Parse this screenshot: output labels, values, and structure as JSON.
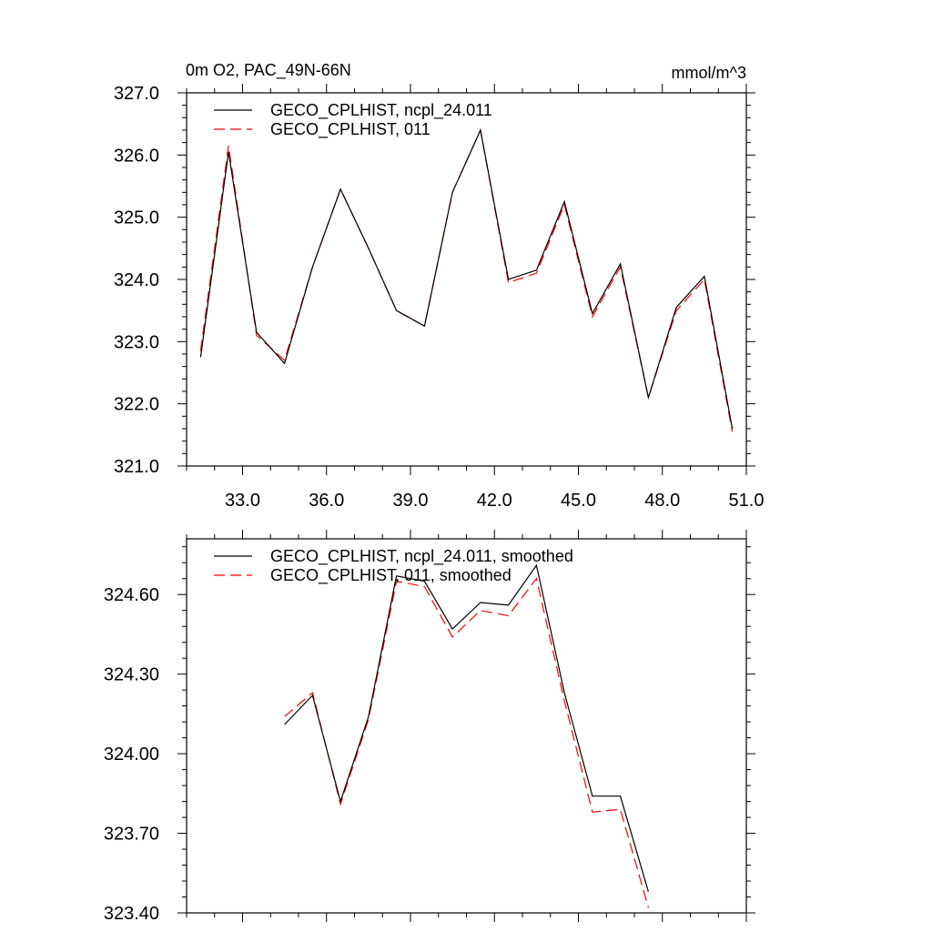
{
  "chart_data": [
    {
      "type": "line",
      "title": "0m O2, PAC_49N-66N",
      "units": "mmol/m^3",
      "xlim": [
        31.0,
        51.0
      ],
      "ylim": [
        321.0,
        327.0
      ],
      "x_ticks": [
        33.0,
        36.0,
        39.0,
        42.0,
        45.0,
        48.0,
        51.0
      ],
      "x_tick_labels": [
        "33.0",
        "36.0",
        "39.0",
        "42.0",
        "45.0",
        "48.0",
        "51.0"
      ],
      "y_ticks": [
        321.0,
        322.0,
        323.0,
        324.0,
        325.0,
        326.0,
        327.0
      ],
      "y_tick_labels": [
        "321.0",
        "322.0",
        "323.0",
        "324.0",
        "325.0",
        "326.0",
        "327.0"
      ],
      "legend_position": "top-left",
      "x": [
        31.5,
        32.5,
        33.5,
        34.5,
        35.5,
        36.5,
        37.5,
        38.5,
        39.5,
        40.5,
        41.5,
        42.5,
        43.5,
        44.5,
        45.5,
        46.5,
        47.5,
        48.5,
        49.5,
        50.5
      ],
      "series": [
        {
          "name": "GECO_CPLHIST, ncpl_24.011",
          "color": "#000000",
          "style": "solid",
          "values": [
            322.75,
            326.05,
            323.15,
            322.65,
            324.2,
            325.45,
            324.5,
            323.5,
            323.25,
            325.4,
            326.4,
            324.0,
            324.15,
            325.25,
            323.45,
            324.25,
            322.1,
            323.55,
            324.05,
            321.6
          ]
        },
        {
          "name": "GECO_CPLHIST, 011",
          "color": "#ff0000",
          "style": "dashed",
          "values": [
            322.85,
            326.15,
            323.1,
            322.7,
            324.2,
            325.45,
            324.5,
            323.5,
            323.25,
            325.4,
            326.4,
            323.95,
            324.1,
            325.2,
            323.4,
            324.2,
            322.1,
            323.5,
            324.0,
            321.55
          ]
        }
      ]
    },
    {
      "type": "line",
      "title": "",
      "xlim": [
        31.0,
        51.0
      ],
      "ylim": [
        323.4,
        324.81
      ],
      "x_ticks": [
        33.0,
        36.0,
        39.0,
        42.0,
        45.0,
        48.0,
        51.0
      ],
      "y_ticks": [
        323.4,
        323.7,
        324.0,
        324.3,
        324.6
      ],
      "y_tick_labels": [
        "323.40",
        "323.70",
        "324.00",
        "324.30",
        "324.60"
      ],
      "legend_position": "top-left",
      "x": [
        34.5,
        35.5,
        36.5,
        37.5,
        38.5,
        39.5,
        40.5,
        41.5,
        42.5,
        43.5,
        44.5,
        45.5,
        46.5,
        47.5
      ],
      "series": [
        {
          "name": "GECO_CPLHIST, ncpl_24.011, smoothed",
          "color": "#000000",
          "style": "solid",
          "values": [
            324.11,
            324.22,
            323.82,
            324.14,
            324.67,
            324.65,
            324.47,
            324.57,
            324.56,
            324.71,
            324.23,
            323.84,
            323.84,
            323.48
          ]
        },
        {
          "name": "GECO_CPLHIST, 011, smoothed",
          "color": "#ff0000",
          "style": "dashed",
          "values": [
            324.14,
            324.23,
            323.81,
            324.13,
            324.65,
            324.63,
            324.44,
            324.54,
            324.52,
            324.66,
            324.2,
            323.78,
            323.79,
            323.42
          ]
        }
      ]
    }
  ]
}
